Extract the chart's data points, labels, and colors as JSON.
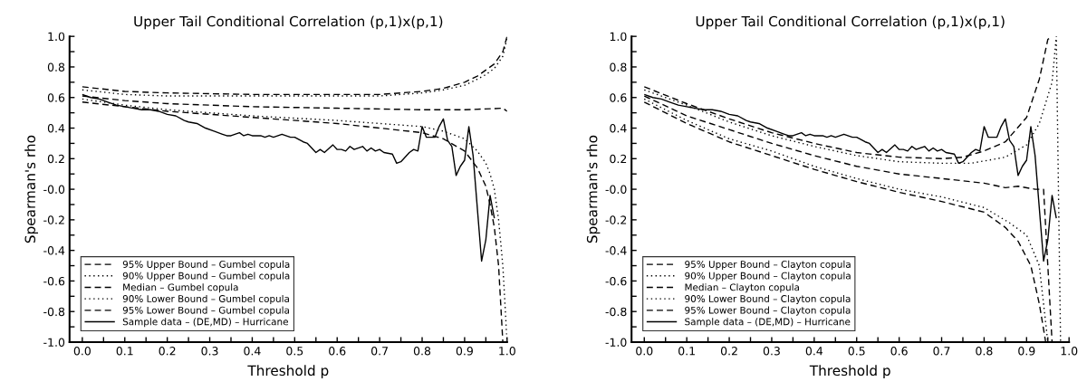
{
  "chart_data": [
    {
      "type": "line",
      "title": "Upper Tail Conditional Correlation (p,1)x(p,1)",
      "xlabel": "Threshold p",
      "ylabel": "Spearman's rho",
      "xlim": [
        -0.03,
        1.0
      ],
      "ylim": [
        -1.0,
        1.0
      ],
      "xticks": [
        {
          "value": 0,
          "label": "0.0"
        },
        {
          "value": 0.05,
          "label": null
        },
        {
          "value": 0.1,
          "label": "0.1"
        },
        {
          "value": 0.15,
          "label": null
        },
        {
          "value": 0.2,
          "label": "0.2"
        },
        {
          "value": 0.25,
          "label": null
        },
        {
          "value": 0.3,
          "label": "0.3"
        },
        {
          "value": 0.35,
          "label": null
        },
        {
          "value": 0.4,
          "label": "0.4"
        },
        {
          "value": 0.45,
          "label": null
        },
        {
          "value": 0.5,
          "label": "0.5"
        },
        {
          "value": 0.55,
          "label": null
        },
        {
          "value": 0.6,
          "label": "0.6"
        },
        {
          "value": 0.65,
          "label": null
        },
        {
          "value": 0.7,
          "label": "0.7"
        },
        {
          "value": 0.75,
          "label": null
        },
        {
          "value": 0.8,
          "label": "0.8"
        },
        {
          "value": 0.85,
          "label": null
        },
        {
          "value": 0.9,
          "label": "0.9"
        },
        {
          "value": 0.95,
          "label": null
        },
        {
          "value": 1.0,
          "label": "1.0"
        }
      ],
      "yticks": [
        {
          "value": -1.0,
          "label": "-1.0"
        },
        {
          "value": -0.9,
          "label": null
        },
        {
          "value": -0.8,
          "label": "-0.8"
        },
        {
          "value": -0.7,
          "label": null
        },
        {
          "value": -0.6,
          "label": "-0.6"
        },
        {
          "value": -0.5,
          "label": null
        },
        {
          "value": -0.4,
          "label": "-0.4"
        },
        {
          "value": -0.3,
          "label": null
        },
        {
          "value": -0.2,
          "label": "-0.2"
        },
        {
          "value": -0.1,
          "label": null
        },
        {
          "value": 0,
          "label": "-0.0"
        },
        {
          "value": 0.1,
          "label": null
        },
        {
          "value": 0.2,
          "label": "0.2"
        },
        {
          "value": 0.3,
          "label": null
        },
        {
          "value": 0.4,
          "label": "0.4"
        },
        {
          "value": 0.5,
          "label": null
        },
        {
          "value": 0.6,
          "label": "0.6"
        },
        {
          "value": 0.7,
          "label": null
        },
        {
          "value": 0.8,
          "label": "0.8"
        },
        {
          "value": 0.9,
          "label": null
        },
        {
          "value": 1.0,
          "label": "1.0"
        }
      ],
      "legend": "bottom left",
      "grid": false,
      "series": [
        {
          "name": "95% Upper Bound – Gumbel copula",
          "color": "#000000",
          "line_style": "dashed",
          "x": [
            0,
            0.1,
            0.2,
            0.4,
            0.6,
            0.7,
            0.8,
            0.85,
            0.9,
            0.93,
            0.95,
            0.97,
            0.99,
            1.0
          ],
          "values": [
            0.67,
            0.64,
            0.63,
            0.62,
            0.62,
            0.62,
            0.64,
            0.66,
            0.7,
            0.74,
            0.78,
            0.82,
            0.9,
            1.0
          ]
        },
        {
          "name": "90% Upper Bound – Gumbel copula",
          "color": "#000000",
          "line_style": "dotted",
          "x": [
            0,
            0.1,
            0.2,
            0.4,
            0.6,
            0.7,
            0.8,
            0.85,
            0.9,
            0.93,
            0.95,
            0.97,
            0.99,
            1.0
          ],
          "values": [
            0.65,
            0.62,
            0.61,
            0.61,
            0.61,
            0.61,
            0.63,
            0.65,
            0.68,
            0.72,
            0.75,
            0.79,
            0.87,
            0.99
          ]
        },
        {
          "name": "Median – Gumbel copula",
          "color": "#000000",
          "line_style": "dashed",
          "x": [
            0,
            0.1,
            0.2,
            0.4,
            0.6,
            0.8,
            0.9,
            0.99,
            1.0
          ],
          "values": [
            0.61,
            0.58,
            0.56,
            0.54,
            0.53,
            0.52,
            0.52,
            0.53,
            0.51
          ]
        },
        {
          "name": "90% Lower Bound – Gumbel copula",
          "color": "#000000",
          "line_style": "dotted",
          "x": [
            0,
            0.1,
            0.2,
            0.4,
            0.6,
            0.8,
            0.85,
            0.9,
            0.93,
            0.95,
            0.96,
            0.97,
            0.98,
            0.99,
            1.0
          ],
          "values": [
            0.59,
            0.55,
            0.52,
            0.48,
            0.45,
            0.41,
            0.38,
            0.33,
            0.25,
            0.17,
            0.1,
            0.0,
            -0.2,
            -0.5,
            -1.0
          ]
        },
        {
          "name": "95% Lower Bound – Gumbel copula",
          "color": "#000000",
          "line_style": "dashed",
          "x": [
            0,
            0.1,
            0.2,
            0.4,
            0.6,
            0.8,
            0.85,
            0.9,
            0.93,
            0.95,
            0.96,
            0.97,
            0.98,
            0.99
          ],
          "values": [
            0.57,
            0.54,
            0.51,
            0.47,
            0.43,
            0.37,
            0.33,
            0.25,
            0.14,
            0.02,
            -0.1,
            -0.25,
            -0.5,
            -1.0
          ]
        },
        {
          "name": "Sample data – (DE,MD) – Hurricane",
          "color": "#000000",
          "line_style": "solid",
          "x": [
            0,
            0.02,
            0.04,
            0.06,
            0.08,
            0.1,
            0.12,
            0.14,
            0.16,
            0.18,
            0.2,
            0.22,
            0.24,
            0.25,
            0.27,
            0.29,
            0.31,
            0.33,
            0.34,
            0.35,
            0.37,
            0.38,
            0.39,
            0.4,
            0.42,
            0.43,
            0.44,
            0.45,
            0.47,
            0.49,
            0.5,
            0.52,
            0.53,
            0.55,
            0.56,
            0.57,
            0.59,
            0.6,
            0.61,
            0.62,
            0.63,
            0.64,
            0.66,
            0.67,
            0.68,
            0.69,
            0.7,
            0.71,
            0.73,
            0.74,
            0.75,
            0.77,
            0.78,
            0.79,
            0.8,
            0.81,
            0.82,
            0.83,
            0.84,
            0.85,
            0.86,
            0.87,
            0.88,
            0.89,
            0.9,
            0.91,
            0.92,
            0.94,
            0.95,
            0.96,
            0.97
          ],
          "values": [
            0.62,
            0.6,
            0.59,
            0.57,
            0.55,
            0.54,
            0.53,
            0.52,
            0.52,
            0.51,
            0.49,
            0.48,
            0.45,
            0.44,
            0.43,
            0.4,
            0.38,
            0.36,
            0.35,
            0.35,
            0.37,
            0.35,
            0.36,
            0.35,
            0.35,
            0.34,
            0.35,
            0.34,
            0.36,
            0.34,
            0.34,
            0.31,
            0.3,
            0.24,
            0.26,
            0.24,
            0.29,
            0.26,
            0.26,
            0.25,
            0.28,
            0.26,
            0.28,
            0.25,
            0.27,
            0.25,
            0.26,
            0.24,
            0.23,
            0.17,
            0.18,
            0.24,
            0.26,
            0.25,
            0.41,
            0.34,
            0.34,
            0.34,
            0.41,
            0.46,
            0.32,
            0.28,
            0.09,
            0.15,
            0.19,
            0.41,
            0.22,
            -0.47,
            -0.33,
            -0.04,
            -0.19
          ]
        }
      ]
    },
    {
      "type": "line",
      "title": "Upper Tail Conditional Correlation (p,1)x(p,1)",
      "xlabel": "Threshold p",
      "ylabel": "Spearman's rho",
      "xlim": [
        -0.03,
        1.0
      ],
      "ylim": [
        -1.0,
        1.0
      ],
      "xticks": [
        {
          "value": 0,
          "label": "0.0"
        },
        {
          "value": 0.05,
          "label": null
        },
        {
          "value": 0.1,
          "label": "0.1"
        },
        {
          "value": 0.15,
          "label": null
        },
        {
          "value": 0.2,
          "label": "0.2"
        },
        {
          "value": 0.25,
          "label": null
        },
        {
          "value": 0.3,
          "label": "0.3"
        },
        {
          "value": 0.35,
          "label": null
        },
        {
          "value": 0.4,
          "label": "0.4"
        },
        {
          "value": 0.45,
          "label": null
        },
        {
          "value": 0.5,
          "label": "0.5"
        },
        {
          "value": 0.55,
          "label": null
        },
        {
          "value": 0.6,
          "label": "0.6"
        },
        {
          "value": 0.65,
          "label": null
        },
        {
          "value": 0.7,
          "label": "0.7"
        },
        {
          "value": 0.75,
          "label": null
        },
        {
          "value": 0.8,
          "label": "0.8"
        },
        {
          "value": 0.85,
          "label": null
        },
        {
          "value": 0.9,
          "label": "0.9"
        },
        {
          "value": 0.95,
          "label": null
        },
        {
          "value": 1.0,
          "label": "1.0"
        }
      ],
      "yticks": [
        {
          "value": -1.0,
          "label": "-1.0"
        },
        {
          "value": -0.9,
          "label": null
        },
        {
          "value": -0.8,
          "label": "-0.8"
        },
        {
          "value": -0.7,
          "label": null
        },
        {
          "value": -0.6,
          "label": "-0.6"
        },
        {
          "value": -0.5,
          "label": null
        },
        {
          "value": -0.4,
          "label": "-0.4"
        },
        {
          "value": -0.3,
          "label": null
        },
        {
          "value": -0.2,
          "label": "-0.2"
        },
        {
          "value": -0.1,
          "label": null
        },
        {
          "value": 0,
          "label": "-0.0"
        },
        {
          "value": 0.1,
          "label": null
        },
        {
          "value": 0.2,
          "label": "0.2"
        },
        {
          "value": 0.3,
          "label": null
        },
        {
          "value": 0.4,
          "label": "0.4"
        },
        {
          "value": 0.5,
          "label": null
        },
        {
          "value": 0.6,
          "label": "0.6"
        },
        {
          "value": 0.7,
          "label": null
        },
        {
          "value": 0.8,
          "label": "0.8"
        },
        {
          "value": 0.9,
          "label": null
        },
        {
          "value": 1.0,
          "label": "1.0"
        }
      ],
      "legend": "bottom left",
      "grid": false,
      "series": [
        {
          "name": "95% Upper Bound – Clayton copula",
          "color": "#000000",
          "line_style": "dashed",
          "x": [
            0,
            0.1,
            0.2,
            0.3,
            0.4,
            0.5,
            0.6,
            0.7,
            0.75,
            0.8,
            0.85,
            0.9,
            0.93,
            0.95,
            0.96
          ],
          "values": [
            0.67,
            0.56,
            0.46,
            0.37,
            0.3,
            0.24,
            0.21,
            0.2,
            0.21,
            0.25,
            0.31,
            0.47,
            0.72,
            0.98,
            1.0
          ]
        },
        {
          "name": "90% Upper Bound – Clayton copula",
          "color": "#000000",
          "line_style": "dotted",
          "x": [
            0,
            0.1,
            0.2,
            0.3,
            0.4,
            0.5,
            0.6,
            0.7,
            0.77,
            0.85,
            0.9,
            0.93,
            0.96,
            0.97,
            0.98
          ],
          "values": [
            0.65,
            0.55,
            0.44,
            0.35,
            0.28,
            0.22,
            0.18,
            0.17,
            0.17,
            0.21,
            0.29,
            0.43,
            0.7,
            1.0,
            -1.0
          ]
        },
        {
          "name": "Median – Clayton copula",
          "color": "#000000",
          "line_style": "dashed",
          "x": [
            0,
            0.1,
            0.2,
            0.3,
            0.4,
            0.5,
            0.6,
            0.7,
            0.8,
            0.85,
            0.88,
            0.92,
            0.94,
            0.96
          ],
          "values": [
            0.61,
            0.48,
            0.39,
            0.3,
            0.22,
            0.15,
            0.1,
            0.07,
            0.04,
            0.01,
            0.02,
            0.0,
            0.0,
            -1.0
          ]
        },
        {
          "name": "90% Lower Bound – Clayton copula",
          "color": "#000000",
          "line_style": "dotted",
          "x": [
            0,
            0.1,
            0.2,
            0.3,
            0.4,
            0.5,
            0.6,
            0.7,
            0.8,
            0.86,
            0.9,
            0.93,
            0.95
          ],
          "values": [
            0.59,
            0.45,
            0.33,
            0.25,
            0.15,
            0.07,
            0.0,
            -0.05,
            -0.12,
            -0.22,
            -0.3,
            -0.5,
            -1.0
          ]
        },
        {
          "name": "95% Lower Bound – Clayton copula",
          "color": "#000000",
          "line_style": "dashed",
          "x": [
            0,
            0.1,
            0.2,
            0.3,
            0.4,
            0.5,
            0.6,
            0.7,
            0.8,
            0.85,
            0.88,
            0.91,
            0.93,
            0.945
          ],
          "values": [
            0.57,
            0.43,
            0.31,
            0.22,
            0.13,
            0.05,
            -0.02,
            -0.08,
            -0.15,
            -0.25,
            -0.34,
            -0.5,
            -0.75,
            -1.0
          ]
        },
        {
          "name": "Sample data – (DE,MD) – Hurricane",
          "color": "#000000",
          "line_style": "solid",
          "x": [
            0,
            0.02,
            0.04,
            0.06,
            0.08,
            0.1,
            0.12,
            0.14,
            0.16,
            0.18,
            0.2,
            0.22,
            0.24,
            0.25,
            0.27,
            0.29,
            0.31,
            0.33,
            0.34,
            0.35,
            0.37,
            0.38,
            0.39,
            0.4,
            0.42,
            0.43,
            0.44,
            0.45,
            0.47,
            0.49,
            0.5,
            0.52,
            0.53,
            0.55,
            0.56,
            0.57,
            0.59,
            0.6,
            0.61,
            0.62,
            0.63,
            0.64,
            0.66,
            0.67,
            0.68,
            0.69,
            0.7,
            0.71,
            0.73,
            0.74,
            0.75,
            0.77,
            0.78,
            0.79,
            0.8,
            0.81,
            0.82,
            0.83,
            0.84,
            0.85,
            0.86,
            0.87,
            0.88,
            0.89,
            0.9,
            0.91,
            0.92,
            0.94,
            0.95,
            0.96,
            0.97
          ],
          "values": [
            0.62,
            0.6,
            0.59,
            0.57,
            0.55,
            0.54,
            0.53,
            0.52,
            0.52,
            0.51,
            0.49,
            0.48,
            0.45,
            0.44,
            0.43,
            0.4,
            0.38,
            0.36,
            0.35,
            0.35,
            0.37,
            0.35,
            0.36,
            0.35,
            0.35,
            0.34,
            0.35,
            0.34,
            0.36,
            0.34,
            0.34,
            0.31,
            0.3,
            0.24,
            0.26,
            0.24,
            0.29,
            0.26,
            0.26,
            0.25,
            0.28,
            0.26,
            0.28,
            0.25,
            0.27,
            0.25,
            0.26,
            0.24,
            0.23,
            0.17,
            0.18,
            0.24,
            0.26,
            0.25,
            0.41,
            0.34,
            0.34,
            0.34,
            0.41,
            0.46,
            0.32,
            0.28,
            0.09,
            0.15,
            0.19,
            0.41,
            0.22,
            -0.47,
            -0.33,
            -0.04,
            -0.19
          ]
        }
      ]
    }
  ]
}
